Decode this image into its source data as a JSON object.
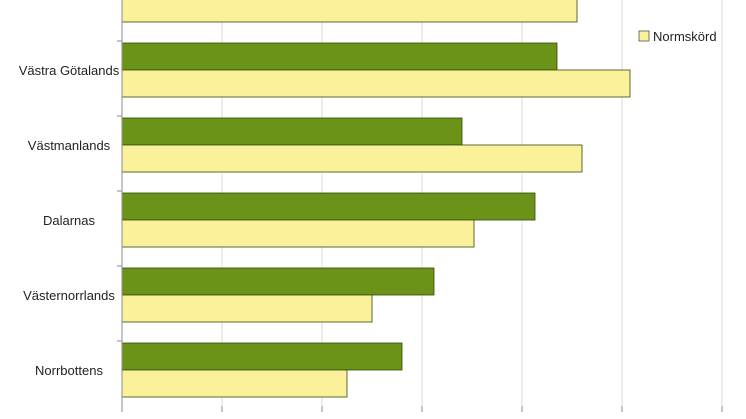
{
  "chart_data": {
    "type": "bar",
    "orientation": "horizontal",
    "categories": [
      "",
      "Västra Götalands",
      "Västmanlands",
      "Dalarnas",
      "Västernorrlands",
      "Norrbottens"
    ],
    "series": [
      {
        "name": "",
        "color": "#6b9318",
        "values": [
          null,
          4.35,
          3.4,
          4.13,
          3.12,
          2.8
        ]
      },
      {
        "name": "Normskörd",
        "color": "#fbf19b",
        "values": [
          4.55,
          5.08,
          4.6,
          3.52,
          2.5,
          2.25
        ]
      }
    ],
    "xlim": [
      0,
      6
    ],
    "grid": true,
    "legend": {
      "position": "top-right",
      "entries": [
        "Normskörd"
      ]
    }
  }
}
